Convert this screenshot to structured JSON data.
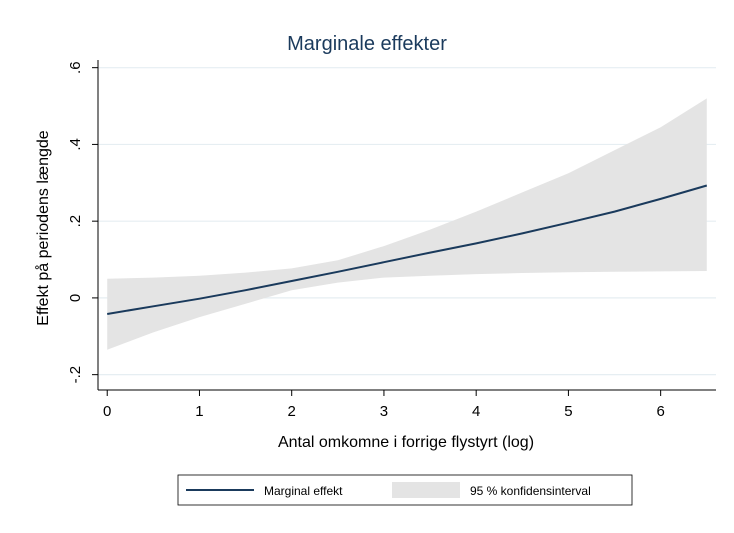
{
  "chart_data": {
    "type": "line",
    "title": "Marginale effekter",
    "xlabel": "Antal omkomne i forrige flystyrt (log)",
    "ylabel": "Effekt på periodens længde",
    "xlim": [
      -0.1,
      6.6
    ],
    "ylim": [
      -0.24,
      0.62
    ],
    "x_ticks": [
      0,
      1,
      2,
      3,
      4,
      5,
      6
    ],
    "x_tick_labels": [
      "0",
      "1",
      "2",
      "3",
      "4",
      "5",
      "6"
    ],
    "y_ticks": [
      -0.2,
      0,
      0.2,
      0.4,
      0.6
    ],
    "y_tick_labels": [
      "-.2",
      "0",
      ".2",
      ".4",
      ".6"
    ],
    "grid": true,
    "legend_position": "bottom",
    "line_color": "#1a3a5c",
    "band_color": "#e4e4e4",
    "series": [
      {
        "name": "Marginal effekt",
        "x": [
          0,
          0.5,
          1,
          1.5,
          2,
          2.5,
          3,
          3.5,
          4,
          4.5,
          5,
          5.5,
          6,
          6.5
        ],
        "y": [
          -0.042,
          -0.022,
          -0.002,
          0.02,
          0.044,
          0.068,
          0.093,
          0.118,
          0.142,
          0.168,
          0.196,
          0.225,
          0.258,
          0.293
        ]
      }
    ],
    "confidence_band": {
      "name": "95 % konfidensinterval",
      "x": [
        0,
        0.5,
        1,
        1.5,
        2,
        2.5,
        3,
        3.5,
        4,
        4.5,
        5,
        5.5,
        6,
        6.5
      ],
      "lower": [
        -0.135,
        -0.09,
        -0.05,
        -0.015,
        0.02,
        0.04,
        0.053,
        0.058,
        0.062,
        0.065,
        0.067,
        0.068,
        0.069,
        0.07
      ],
      "upper": [
        0.05,
        0.053,
        0.058,
        0.066,
        0.077,
        0.098,
        0.135,
        0.178,
        0.225,
        0.275,
        0.325,
        0.385,
        0.445,
        0.52
      ]
    }
  }
}
